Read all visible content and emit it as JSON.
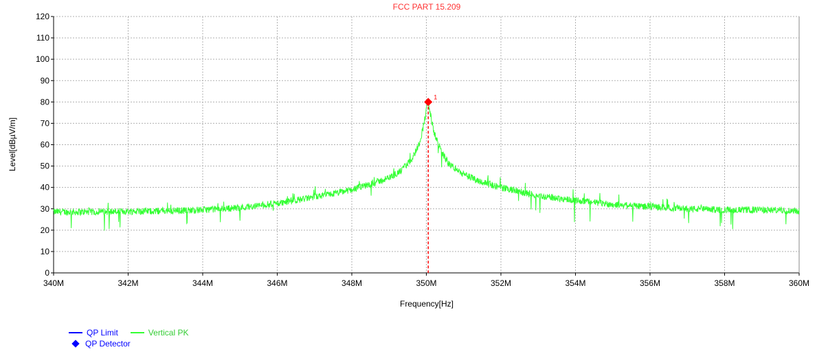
{
  "chart_data": {
    "type": "line",
    "title": "FCC PART 15.209",
    "xlabel": "Frequency[Hz]",
    "ylabel": "Level[dBµV/m]",
    "xlim": [
      340,
      360
    ],
    "ylim": [
      0,
      120
    ],
    "x_unit": "MHz",
    "x_ticks": [
      340,
      342,
      344,
      346,
      348,
      350,
      352,
      354,
      356,
      358,
      360
    ],
    "x_tick_labels": [
      "340M",
      "342M",
      "344M",
      "346M",
      "348M",
      "350M",
      "352M",
      "354M",
      "356M",
      "358M",
      "360M"
    ],
    "y_ticks": [
      0,
      10,
      20,
      30,
      40,
      50,
      60,
      70,
      80,
      90,
      100,
      110,
      120
    ],
    "y_tick_labels": [
      "0",
      "10",
      "20",
      "30",
      "40",
      "50",
      "60",
      "70",
      "80",
      "90",
      "100",
      "110",
      "120"
    ],
    "grid": true,
    "series": [
      {
        "name": "Vertical PK",
        "color": "#33ff33",
        "x": [
          340.0,
          341.0,
          342.0,
          343.0,
          344.0,
          345.0,
          345.5,
          346.0,
          346.5,
          347.0,
          347.5,
          348.0,
          348.5,
          349.0,
          349.3,
          349.6,
          349.8,
          349.9,
          350.0,
          350.05,
          350.1,
          350.2,
          350.4,
          350.6,
          350.8,
          351.0,
          351.5,
          352.0,
          352.5,
          353.0,
          353.5,
          354.0,
          355.0,
          356.0,
          357.0,
          358.0,
          359.0,
          360.0
        ],
        "values": [
          28.5,
          28.5,
          28.8,
          29.0,
          29.5,
          30.5,
          31.5,
          32.5,
          34.0,
          35.5,
          37.0,
          39.0,
          41.5,
          44.5,
          47.5,
          53.0,
          60.0,
          67.0,
          76.0,
          80.5,
          75.0,
          66.0,
          57.0,
          51.0,
          48.5,
          46.0,
          42.5,
          40.0,
          38.0,
          36.0,
          35.0,
          34.0,
          32.0,
          31.0,
          30.0,
          29.5,
          29.5,
          29.0
        ]
      }
    ],
    "marker": {
      "label": "1",
      "x": 350.05,
      "y": 80,
      "color": "#ff0000"
    },
    "legend": {
      "placement": "bottom-left",
      "entries": [
        {
          "label": "QP Limit",
          "symbol": "line",
          "color": "#0000ff"
        },
        {
          "label": "Vertical PK",
          "symbol": "line",
          "color": "#33ff33"
        },
        {
          "label": "QP Detector",
          "symbol": "diamond",
          "color": "#0000ff"
        }
      ]
    },
    "title_color": "#ff3333"
  }
}
